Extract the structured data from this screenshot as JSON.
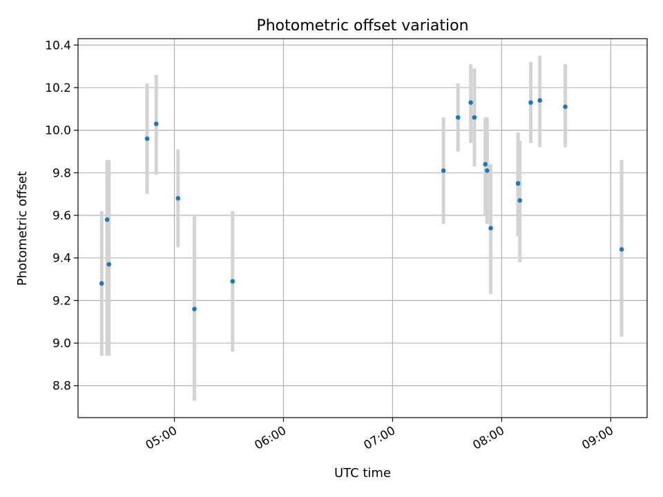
{
  "chart_data": {
    "type": "scatter",
    "title": "Photometric offset variation",
    "xlabel": "UTC time",
    "ylabel": "Photometric offset",
    "x_unit": "UTC hours",
    "xlim": [
      "04:07",
      "09:20"
    ],
    "ylim": [
      8.65,
      10.43
    ],
    "x_ticks": [
      "05:00",
      "06:00",
      "07:00",
      "08:00",
      "09:00"
    ],
    "y_ticks": [
      "8.8",
      "9.0",
      "9.2",
      "9.4",
      "9.6",
      "9.8",
      "10.0",
      "10.2",
      "10.4"
    ],
    "grid": true,
    "x_tick_rotation": "30 degrees",
    "marker_color": "#1f77b4",
    "errorbar_color": "#d3d3d3",
    "points": [
      {
        "x": "04:20",
        "y": 9.28,
        "ylow": 8.94,
        "yhigh": 9.62
      },
      {
        "x": "04:23",
        "y": 9.58,
        "ylow": 8.94,
        "yhigh": 9.86
      },
      {
        "x": "04:24",
        "y": 9.37,
        "ylow": 8.94,
        "yhigh": 9.86
      },
      {
        "x": "04:45",
        "y": 9.96,
        "ylow": 9.7,
        "yhigh": 10.22
      },
      {
        "x": "04:50",
        "y": 10.03,
        "ylow": 9.79,
        "yhigh": 10.26
      },
      {
        "x": "05:02",
        "y": 9.68,
        "ylow": 9.45,
        "yhigh": 9.91
      },
      {
        "x": "05:11",
        "y": 9.16,
        "ylow": 8.73,
        "yhigh": 9.6
      },
      {
        "x": "05:32",
        "y": 9.29,
        "ylow": 8.96,
        "yhigh": 9.62
      },
      {
        "x": "07:28",
        "y": 9.81,
        "ylow": 9.56,
        "yhigh": 10.06
      },
      {
        "x": "07:36",
        "y": 10.06,
        "ylow": 9.9,
        "yhigh": 10.22
      },
      {
        "x": "07:43",
        "y": 10.13,
        "ylow": 9.94,
        "yhigh": 10.31
      },
      {
        "x": "07:45",
        "y": 10.06,
        "ylow": 9.83,
        "yhigh": 10.29
      },
      {
        "x": "07:51",
        "y": 9.84,
        "ylow": 9.6,
        "yhigh": 10.06
      },
      {
        "x": "07:52",
        "y": 9.81,
        "ylow": 9.56,
        "yhigh": 10.06
      },
      {
        "x": "07:54",
        "y": 9.54,
        "ylow": 9.23,
        "yhigh": 9.84
      },
      {
        "x": "08:09",
        "y": 9.75,
        "ylow": 9.5,
        "yhigh": 9.99
      },
      {
        "x": "08:10",
        "y": 9.67,
        "ylow": 9.38,
        "yhigh": 9.95
      },
      {
        "x": "08:16",
        "y": 10.13,
        "ylow": 9.94,
        "yhigh": 10.32
      },
      {
        "x": "08:21",
        "y": 10.14,
        "ylow": 9.92,
        "yhigh": 10.35
      },
      {
        "x": "08:35",
        "y": 10.11,
        "ylow": 9.92,
        "yhigh": 10.31
      },
      {
        "x": "09:06",
        "y": 9.44,
        "ylow": 9.03,
        "yhigh": 9.86
      }
    ]
  }
}
